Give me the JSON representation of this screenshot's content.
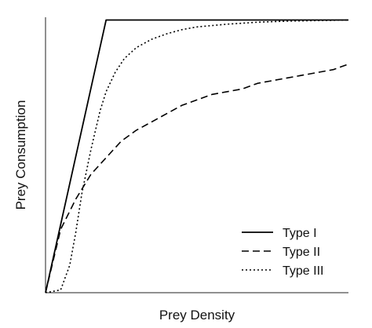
{
  "chart_data": {
    "type": "line",
    "xlabel": "Prey Density",
    "ylabel": "Prey Consumption",
    "xlim": [
      0,
      10
    ],
    "ylim": [
      0,
      1
    ],
    "grid": false,
    "legend_position": "bottom-right",
    "series": [
      {
        "name": "Type I",
        "line_style": "solid",
        "color": "#000000",
        "x": [
          0,
          2,
          10
        ],
        "y": [
          0,
          0.99,
          0.99
        ]
      },
      {
        "name": "Type II",
        "line_style": "dashed",
        "color": "#000000",
        "x": [
          0,
          0.5,
          1,
          1.5,
          2,
          2.5,
          3,
          3.5,
          4,
          4.5,
          5,
          5.5,
          6,
          6.5,
          7,
          7.5,
          8,
          8.5,
          9,
          9.5,
          10
        ],
        "y": [
          0,
          0.23,
          0.34,
          0.43,
          0.49,
          0.55,
          0.59,
          0.62,
          0.65,
          0.68,
          0.7,
          0.72,
          0.73,
          0.74,
          0.76,
          0.77,
          0.78,
          0.79,
          0.8,
          0.81,
          0.83
        ]
      },
      {
        "name": "Type III",
        "line_style": "dotted",
        "color": "#000000",
        "x": [
          0,
          0.5,
          0.8,
          1,
          1.2,
          1.5,
          1.8,
          2,
          2.3,
          2.6,
          3,
          3.5,
          4,
          4.5,
          5,
          6,
          7,
          8,
          9,
          10
        ],
        "y": [
          0,
          0.01,
          0.1,
          0.22,
          0.36,
          0.52,
          0.66,
          0.73,
          0.8,
          0.85,
          0.89,
          0.92,
          0.94,
          0.955,
          0.965,
          0.975,
          0.982,
          0.986,
          0.988,
          0.99
        ]
      }
    ]
  }
}
